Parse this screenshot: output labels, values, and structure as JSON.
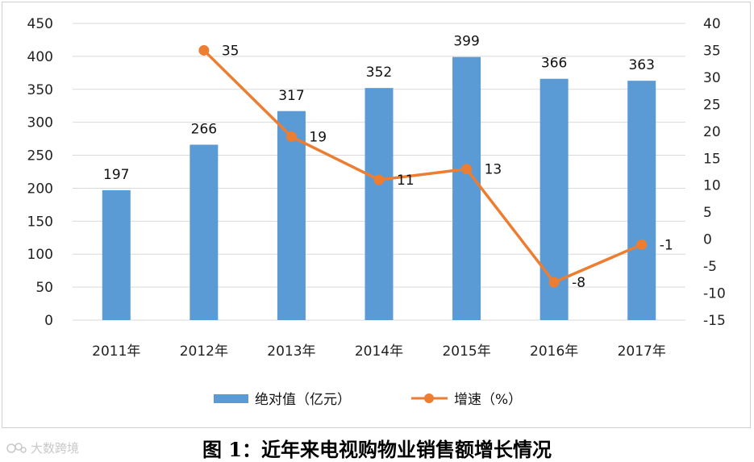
{
  "chart_data": {
    "type": "bar+line",
    "title": "",
    "categories": [
      "2011年",
      "2012年",
      "2013年",
      "2014年",
      "2015年",
      "2016年",
      "2017年"
    ],
    "series": [
      {
        "name": "绝对值（亿元）",
        "type": "bar",
        "axis": "left",
        "color": "#5B9BD5",
        "values": [
          197,
          266,
          317,
          352,
          399,
          366,
          363
        ]
      },
      {
        "name": "增速（%）",
        "type": "line",
        "axis": "right",
        "color": "#ED7D31",
        "values": [
          null,
          35,
          19,
          11,
          13,
          -8,
          -1
        ]
      }
    ],
    "y_left": {
      "min": 0,
      "max": 450,
      "step": 50,
      "ticks": [
        "0",
        "50",
        "100",
        "150",
        "200",
        "250",
        "300",
        "350",
        "400",
        "450"
      ]
    },
    "y_right": {
      "min": -15,
      "max": 40,
      "step": 5,
      "ticks": [
        "-15",
        "-10",
        "-5",
        "0",
        "5",
        "10",
        "15",
        "20",
        "25",
        "30",
        "35",
        "40"
      ]
    },
    "grid": true,
    "legend": "bottom"
  },
  "caption": "图 1：近年来电视购物业销售额增长情况",
  "watermark": "大数跨境"
}
